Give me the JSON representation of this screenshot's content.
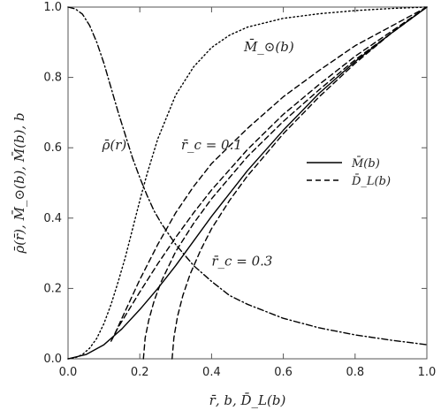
{
  "chart_data": {
    "type": "line",
    "xlabel": "r̄, b, D̄_L(b)",
    "ylabel": "ρ̄(r̄), M̄_⊙(b), M̄(b), b",
    "xlim": [
      0,
      1
    ],
    "ylim": [
      0,
      1
    ],
    "xticks": [
      "0.0",
      "0.2",
      "0.4",
      "0.6",
      "0.8",
      "1.0"
    ],
    "yticks": [
      "0.0",
      "0.2",
      "0.4",
      "0.6",
      "0.8",
      "1.0"
    ],
    "legend_position": "center-right",
    "legend": [
      {
        "label": "M̄(b)",
        "style": "solid"
      },
      {
        "label": "D̄_L(b)",
        "style": "dashed"
      }
    ],
    "annotations": [
      {
        "text": "M̄_⊙(b)",
        "x": 0.49,
        "y": 0.875
      },
      {
        "text": "ρ̄(r)",
        "x": 0.095,
        "y": 0.595
      },
      {
        "text": "r̄_c = 0.1",
        "x": 0.315,
        "y": 0.595
      },
      {
        "text": "r̄_c = 0.3",
        "x": 0.4,
        "y": 0.265
      }
    ],
    "series": [
      {
        "key": "rho",
        "style": "dashdot",
        "x": [
          0.0,
          0.02,
          0.04,
          0.06,
          0.08,
          0.1,
          0.12,
          0.14,
          0.16,
          0.18,
          0.2,
          0.22,
          0.24,
          0.26,
          0.28,
          0.3,
          0.35,
          0.4,
          0.45,
          0.5,
          0.6,
          0.7,
          0.8,
          0.9,
          1.0
        ],
        "y": [
          1.0,
          0.995,
          0.98,
          0.948,
          0.9,
          0.84,
          0.77,
          0.7,
          0.635,
          0.57,
          0.515,
          0.465,
          0.42,
          0.385,
          0.355,
          0.325,
          0.265,
          0.22,
          0.18,
          0.155,
          0.115,
          0.088,
          0.068,
          0.053,
          0.04
        ]
      },
      {
        "key": "M_sun",
        "style": "dotted",
        "x": [
          0.0,
          0.02,
          0.04,
          0.06,
          0.08,
          0.1,
          0.12,
          0.14,
          0.16,
          0.18,
          0.2,
          0.22,
          0.25,
          0.3,
          0.35,
          0.4,
          0.45,
          0.5,
          0.6,
          0.7,
          0.8,
          0.9,
          1.0
        ],
        "y": [
          0.0,
          0.003,
          0.012,
          0.03,
          0.058,
          0.1,
          0.155,
          0.22,
          0.29,
          0.37,
          0.45,
          0.525,
          0.625,
          0.75,
          0.83,
          0.885,
          0.92,
          0.943,
          0.968,
          0.981,
          0.99,
          0.996,
          1.0
        ]
      },
      {
        "key": "M_bar",
        "style": "solid",
        "x": [
          0.0,
          0.05,
          0.1,
          0.15,
          0.2,
          0.25,
          0.3,
          0.35,
          0.4,
          0.5,
          0.6,
          0.7,
          0.8,
          0.9,
          1.0
        ],
        "y": [
          0.0,
          0.012,
          0.04,
          0.085,
          0.14,
          0.2,
          0.265,
          0.335,
          0.405,
          0.535,
          0.65,
          0.755,
          0.845,
          0.925,
          1.0
        ]
      },
      {
        "key": "D_rc01",
        "style": "dashed",
        "x": [
          0.12,
          0.14,
          0.17,
          0.2,
          0.25,
          0.3,
          0.35,
          0.4,
          0.5,
          0.6,
          0.7,
          0.8,
          0.9,
          1.0
        ],
        "y": [
          0.05,
          0.09,
          0.14,
          0.19,
          0.27,
          0.345,
          0.415,
          0.48,
          0.595,
          0.695,
          0.78,
          0.86,
          0.93,
          1.0
        ]
      },
      {
        "key": "D_rc01_upper",
        "style": "dashed",
        "x": [
          0.13,
          0.15,
          0.2,
          0.25,
          0.3,
          0.35,
          0.4,
          0.5,
          0.6,
          0.7,
          0.8,
          0.9,
          1.0
        ],
        "y": [
          0.07,
          0.115,
          0.225,
          0.325,
          0.415,
          0.49,
          0.555,
          0.655,
          0.745,
          0.82,
          0.89,
          0.945,
          1.0
        ]
      },
      {
        "key": "D_rc02",
        "style": "dashed",
        "x": [
          0.21,
          0.215,
          0.225,
          0.24,
          0.26,
          0.3,
          0.35,
          0.4,
          0.5,
          0.6,
          0.7,
          0.8,
          0.9,
          1.0
        ],
        "y": [
          0.0,
          0.06,
          0.11,
          0.165,
          0.22,
          0.305,
          0.385,
          0.455,
          0.575,
          0.675,
          0.765,
          0.85,
          0.925,
          1.0
        ]
      },
      {
        "key": "D_rc03",
        "style": "dashed",
        "x": [
          0.29,
          0.295,
          0.305,
          0.32,
          0.34,
          0.37,
          0.4,
          0.45,
          0.5,
          0.6,
          0.7,
          0.8,
          0.9,
          1.0
        ],
        "y": [
          0.0,
          0.06,
          0.12,
          0.18,
          0.24,
          0.31,
          0.37,
          0.45,
          0.52,
          0.64,
          0.745,
          0.84,
          0.925,
          1.0
        ]
      }
    ]
  }
}
